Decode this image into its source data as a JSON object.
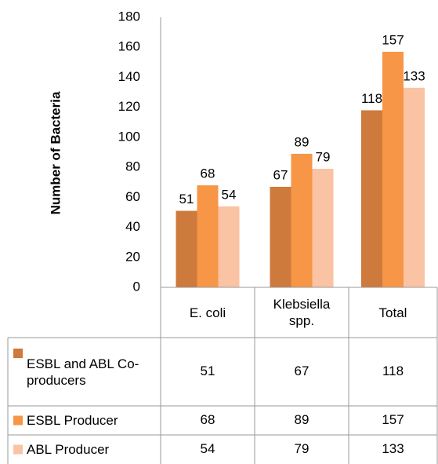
{
  "chart_data": {
    "type": "bar",
    "y_label": "Number of Bacteria",
    "categories": [
      "E. coli",
      "Klebsiella spp.",
      "Total"
    ],
    "series": [
      {
        "name": "ESBL and ABL Co-producers",
        "color": "#cd7a3c",
        "values": [
          51,
          67,
          118
        ]
      },
      {
        "name": "ESBL Producer",
        "color": "#f79646",
        "values": [
          68,
          89,
          157
        ]
      },
      {
        "name": "ABL Producer",
        "color": "#fac3a3",
        "values": [
          54,
          79,
          133
        ]
      }
    ],
    "ylim": [
      0,
      180
    ],
    "yticks": [
      0,
      20,
      40,
      60,
      80,
      100,
      120,
      140,
      160,
      180
    ],
    "grid": false
  }
}
